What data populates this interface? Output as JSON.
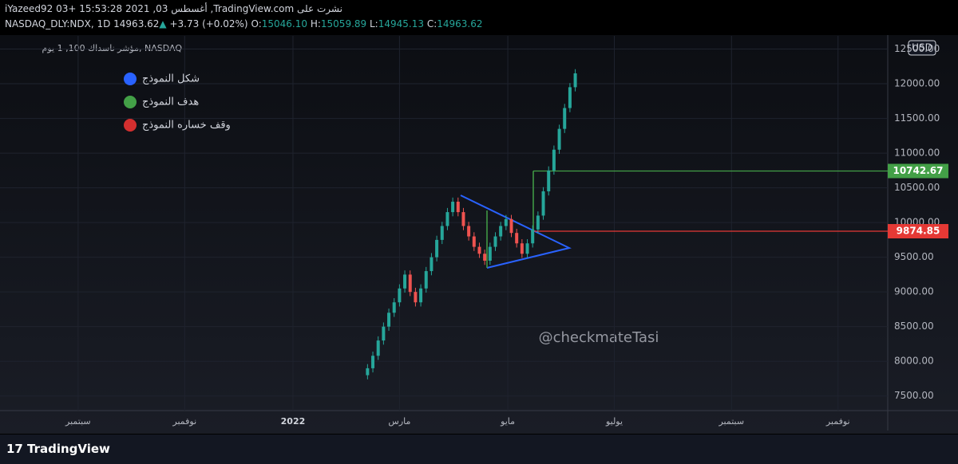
{
  "header": {
    "line1": "iYazeed92 03+ 15:53:28 2021 ,03 أغسطس ,TradingView.com نشرت على",
    "symbol": "NASDAQ_DLY:NDX, 1D",
    "last": "14963.62",
    "arrow": "▲",
    "change": "+3.73 (+0.02%)",
    "o_label": "O:",
    "o": "15046.10",
    "h_label": "H:",
    "h": "15059.89",
    "l_label": "L:",
    "l": "14945.13",
    "c_label": "C:",
    "c": "14963.62"
  },
  "footer": {
    "brand": "TradingView"
  },
  "chart_data": {
    "type": "candlestick",
    "title": "مؤشر ناسداك 100, 1 يوم, NASDAQ",
    "currency": "USD",
    "watermark": "@checkmateTasi",
    "legend": [
      {
        "name": "شكل النموذج",
        "color": "#2962ff"
      },
      {
        "name": "هدف النموذج",
        "color": "#43a047"
      },
      {
        "name": "وقف خساره النموذج",
        "color": "#d32f2f"
      }
    ],
    "x": [
      207,
      210,
      213,
      216,
      219,
      222,
      225,
      228,
      231,
      234,
      237,
      240,
      243,
      246,
      249,
      252,
      255,
      258,
      261,
      264,
      267,
      270,
      273,
      276,
      279,
      282,
      285,
      288,
      291,
      294,
      297,
      300,
      303,
      306,
      309,
      312,
      315,
      318,
      321,
      324
    ],
    "open": [
      7800,
      7900,
      8080,
      8300,
      8500,
      8700,
      8850,
      9050,
      9250,
      9000,
      8850,
      9050,
      9300,
      9500,
      9750,
      9950,
      10150,
      10300,
      10150,
      9950,
      9800,
      9650,
      9550,
      9450,
      9650,
      9800,
      9950,
      10050,
      9850,
      9700,
      9550,
      9700,
      9900,
      10100,
      10450,
      10750,
      11050,
      11350,
      11650,
      11950
    ],
    "high": [
      7960,
      8140,
      8360,
      8560,
      8760,
      8910,
      9110,
      9310,
      9310,
      9060,
      9110,
      9360,
      9560,
      9810,
      10010,
      10210,
      10360,
      10360,
      10210,
      10010,
      9860,
      9710,
      9610,
      9710,
      9860,
      10010,
      10110,
      10110,
      9910,
      9760,
      9760,
      9960,
      10160,
      10510,
      10810,
      11110,
      11410,
      11710,
      12010,
      12210
    ],
    "low": [
      7740,
      7840,
      8020,
      8240,
      8440,
      8640,
      8790,
      8990,
      8940,
      8790,
      8790,
      8990,
      9240,
      9440,
      9690,
      9890,
      10090,
      10090,
      9890,
      9740,
      9590,
      9490,
      9390,
      9390,
      9590,
      9740,
      9890,
      9790,
      9640,
      9490,
      9490,
      9640,
      9840,
      10040,
      10390,
      10690,
      10990,
      11290,
      11590,
      11890
    ],
    "close": [
      7900,
      8080,
      8300,
      8500,
      8700,
      8850,
      9050,
      9250,
      9000,
      8850,
      9050,
      9300,
      9500,
      9750,
      9950,
      10150,
      10300,
      10150,
      9950,
      9800,
      9650,
      9550,
      9450,
      9650,
      9800,
      9950,
      10050,
      9850,
      9700,
      9550,
      9700,
      9900,
      10100,
      10450,
      10750,
      11050,
      11350,
      11650,
      11950,
      12150
    ],
    "up_color": "#26a69a",
    "down_color": "#ef5350",
    "levels": [
      {
        "value": 10742.67,
        "color": "#43a047"
      },
      {
        "value": 9874.85,
        "color": "#e53935"
      }
    ],
    "xlim": [
      0,
      500
    ],
    "xticks": [
      {
        "value": 44,
        "label": "سبتمبر"
      },
      {
        "value": 104,
        "label": "نوفمبر"
      },
      {
        "value": 165,
        "label": "2022"
      },
      {
        "value": 225,
        "label": "مارس"
      },
      {
        "value": 286,
        "label": "مايو"
      },
      {
        "value": 346,
        "label": "يوليو"
      },
      {
        "value": 412,
        "label": "سبتمبر"
      },
      {
        "value": 472,
        "label": "نوفمبر"
      }
    ],
    "ylim": [
      7290,
      12690
    ],
    "yticks": [
      {
        "value": 7500,
        "label": "7500.00"
      },
      {
        "value": 8000,
        "label": "8000.00"
      },
      {
        "value": 8500,
        "label": "8500.00"
      },
      {
        "value": 9000,
        "label": "9000.00"
      },
      {
        "value": 9500,
        "label": "9500.00"
      },
      {
        "value": 10000,
        "label": "10000.00"
      },
      {
        "value": 10500,
        "label": "10500.00"
      },
      {
        "value": 11000,
        "label": "11000.00"
      },
      {
        "value": 11500,
        "label": "11500.00"
      },
      {
        "value": 12000,
        "label": "12000.00"
      },
      {
        "value": 12500,
        "label": "12500.00"
      }
    ],
    "grid": true
  }
}
